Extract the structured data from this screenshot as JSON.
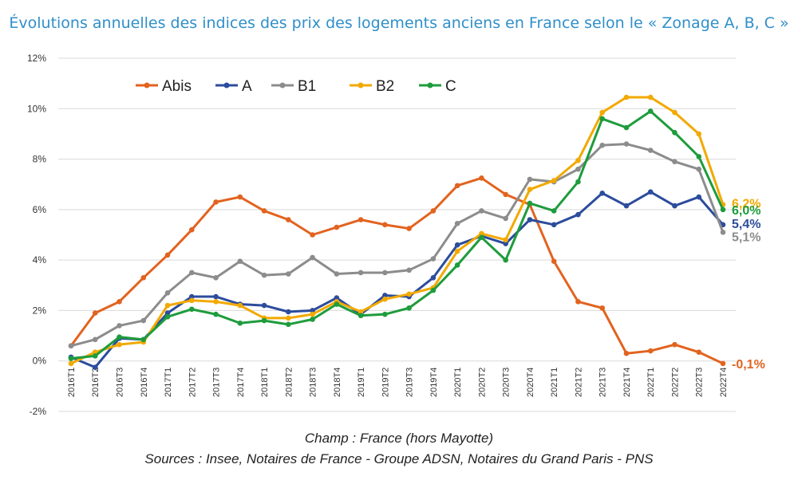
{
  "title": "Évolutions annuelles des indices des prix des logements anciens en France selon le « Zonage A, B, C »",
  "notes": {
    "champ": "Champ : France (hors Mayotte)",
    "sources": "Sources : Insee, Notaires de France - Groupe ADSN, Notaires du Grand Paris - PNS"
  },
  "chart_data": {
    "type": "line",
    "categories": [
      "2016T1",
      "2016T2",
      "2016T3",
      "2016T4",
      "2017T1",
      "2017T2",
      "2017T3",
      "2017T4",
      "2018T1",
      "2018T2",
      "2018T3",
      "2018T4",
      "2019T1",
      "2019T2",
      "2019T3",
      "2019T4",
      "2020T1",
      "2020T2",
      "2020T3",
      "2020T4",
      "2021T1",
      "2021T2",
      "2021T3",
      "2021T4",
      "2022T1",
      "2022T2",
      "2022T3",
      "2022T4"
    ],
    "yticks": [
      "12%",
      "10%",
      "8%",
      "6%",
      "4%",
      "2%",
      "0%",
      "-2%"
    ],
    "ylim": [
      -2,
      12
    ],
    "grid": true,
    "legend_position": "top-left",
    "series": [
      {
        "name": "Abis",
        "color": "#e2631f",
        "end_label": "-0,1%",
        "values": [
          0.6,
          1.9,
          2.35,
          3.3,
          4.2,
          5.2,
          6.3,
          6.5,
          5.95,
          5.6,
          5.0,
          5.3,
          5.6,
          5.4,
          5.25,
          5.95,
          6.95,
          7.25,
          6.6,
          6.2,
          3.95,
          2.35,
          2.1,
          0.3,
          0.4,
          0.65,
          0.35,
          -0.1
        ]
      },
      {
        "name": "A",
        "color": "#2c4c9c",
        "end_label": "5,4%",
        "values": [
          0.15,
          -0.25,
          0.9,
          0.85,
          1.9,
          2.55,
          2.55,
          2.25,
          2.2,
          1.95,
          2.0,
          2.5,
          1.85,
          2.6,
          2.55,
          3.3,
          4.6,
          4.95,
          4.65,
          5.6,
          5.4,
          5.8,
          6.65,
          6.15,
          6.7,
          6.15,
          6.5,
          5.4
        ]
      },
      {
        "name": "B1",
        "color": "#8c8c8c",
        "end_label": "5,1%",
        "values": [
          0.6,
          0.85,
          1.4,
          1.6,
          2.7,
          3.5,
          3.3,
          3.95,
          3.4,
          3.45,
          4.1,
          3.45,
          3.5,
          3.5,
          3.6,
          4.05,
          5.45,
          5.95,
          5.65,
          7.2,
          7.1,
          7.6,
          8.55,
          8.6,
          8.35,
          7.9,
          7.6,
          5.1
        ]
      },
      {
        "name": "B2",
        "color": "#f2a900",
        "end_label": "6,2%",
        "values": [
          -0.1,
          0.35,
          0.65,
          0.75,
          2.2,
          2.4,
          2.35,
          2.2,
          1.7,
          1.7,
          1.85,
          2.35,
          1.95,
          2.45,
          2.65,
          2.9,
          4.35,
          5.05,
          4.8,
          6.8,
          7.15,
          7.95,
          9.85,
          10.45,
          10.45,
          9.85,
          9.0,
          6.2
        ]
      },
      {
        "name": "C",
        "color": "#1e9c3c",
        "end_label": "6,0%",
        "values": [
          0.1,
          0.2,
          0.95,
          0.85,
          1.75,
          2.05,
          1.85,
          1.5,
          1.6,
          1.45,
          1.65,
          2.25,
          1.8,
          1.85,
          2.1,
          2.8,
          3.8,
          4.9,
          4.0,
          6.25,
          5.95,
          7.1,
          9.6,
          9.25,
          9.9,
          9.05,
          8.1,
          6.0
        ]
      }
    ]
  }
}
